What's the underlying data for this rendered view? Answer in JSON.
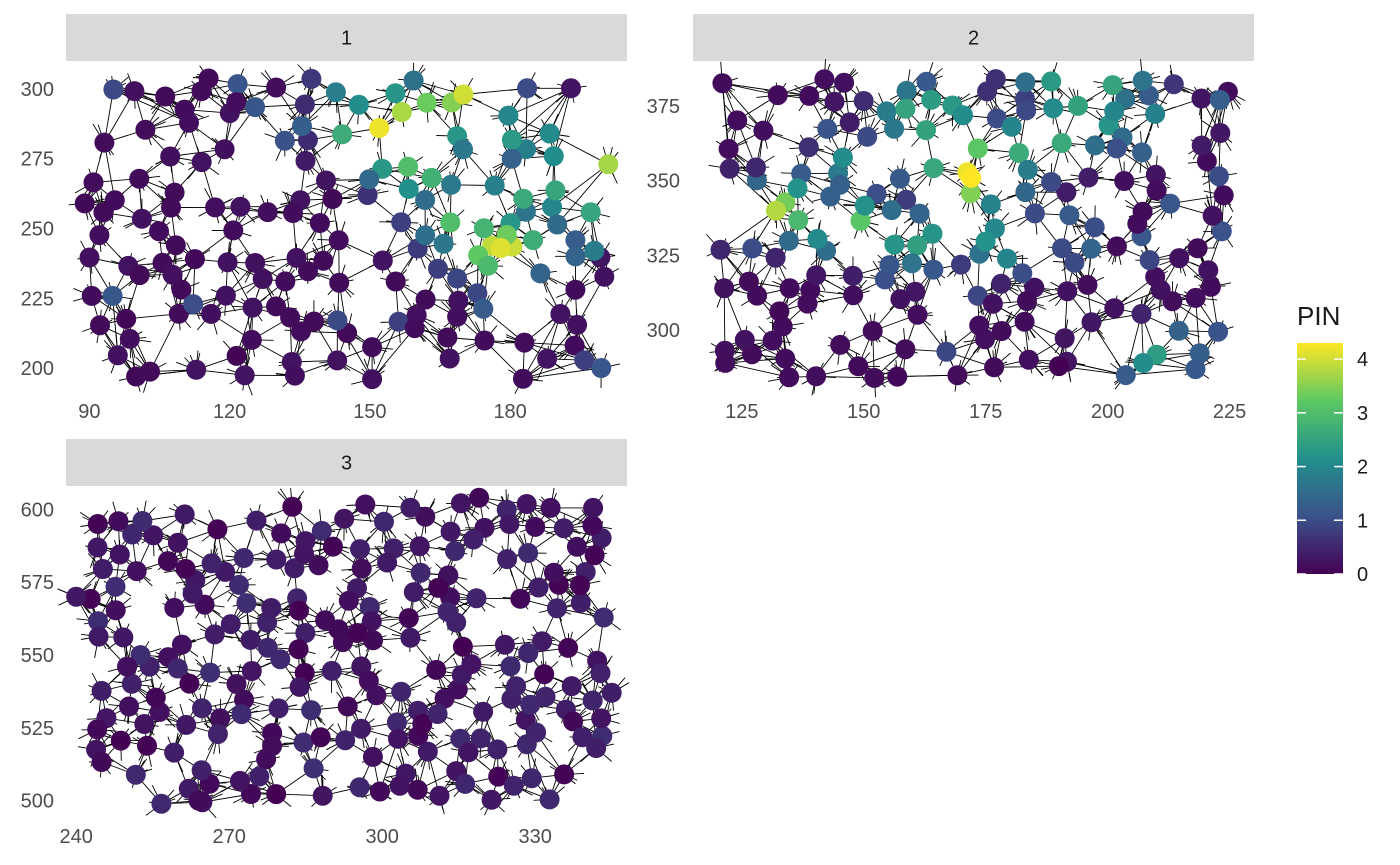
{
  "chart_data": {
    "type": "scatter",
    "subtype": "faceted network scatter (points with edges)",
    "color_scale": {
      "name": "viridis",
      "stops": [
        "#440154",
        "#3b528b",
        "#21908c",
        "#5dc863",
        "#fde725"
      ],
      "domain": [
        0,
        4.3
      ]
    },
    "legend": {
      "title": "PIN",
      "position": "right",
      "breaks": [
        "0",
        "1",
        "2",
        "3",
        "4"
      ]
    },
    "grid": false,
    "panels": [
      {
        "strip": "1",
        "xlim": [
          85,
          205
        ],
        "ylim": [
          190,
          310
        ],
        "x_ticks": [
          "90",
          "120",
          "150",
          "180"
        ],
        "y_ticks": [
          "200",
          "225",
          "250",
          "275",
          "300"
        ],
        "point_count": 160,
        "pin_range": [
          0,
          4.3
        ],
        "points_sample": [
          {
            "x": 89,
            "y": 259,
            "pin": 0.1
          },
          {
            "x": 100,
            "y": 197,
            "pin": 0.1
          },
          {
            "x": 152,
            "y": 286,
            "pin": 4.2
          },
          {
            "x": 170,
            "y": 298,
            "pin": 4.0
          },
          {
            "x": 178,
            "y": 243,
            "pin": 4.1
          },
          {
            "x": 201,
            "y": 273,
            "pin": 3.7
          },
          {
            "x": 198,
            "y": 242,
            "pin": 1.8
          }
        ]
      },
      {
        "strip": "2",
        "xlim": [
          115,
          230
        ],
        "ylim": [
          278,
          390
        ],
        "x_ticks": [
          "125",
          "150",
          "175",
          "200",
          "225"
        ],
        "y_ticks": [
          "300",
          "325",
          "350",
          "375"
        ],
        "point_count": 180,
        "pin_range": [
          0,
          4.3
        ],
        "points_sample": [
          {
            "x": 172,
            "y": 351,
            "pin": 4.3
          },
          {
            "x": 132,
            "y": 340,
            "pin": 3.8
          },
          {
            "x": 223,
            "y": 377,
            "pin": 1.3
          },
          {
            "x": 218,
            "y": 287,
            "pin": 1.2
          },
          {
            "x": 190,
            "y": 288,
            "pin": 0.0
          }
        ]
      },
      {
        "strip": "3",
        "xlim": [
          238,
          348
        ],
        "ylim": [
          493,
          608
        ],
        "x_ticks": [
          "240",
          "270",
          "300",
          "330"
        ],
        "y_ticks": [
          "500",
          "525",
          "550",
          "575",
          "600"
        ],
        "point_count": 220,
        "pin_range": [
          0,
          0.6
        ],
        "points_sample": [
          {
            "x": 240,
            "y": 570,
            "pin": 0.3
          },
          {
            "x": 264,
            "y": 500,
            "pin": 0.1
          },
          {
            "x": 319,
            "y": 604,
            "pin": 0.1
          },
          {
            "x": 345,
            "y": 537,
            "pin": 0.4
          }
        ]
      }
    ]
  }
}
